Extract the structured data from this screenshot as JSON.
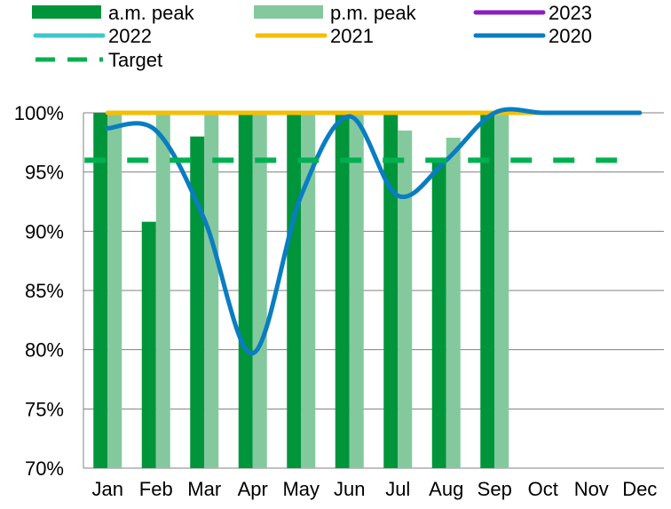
{
  "chart_data": {
    "type": "bar",
    "categories": [
      "Jan",
      "Feb",
      "Mar",
      "Apr",
      "May",
      "Jun",
      "Jul",
      "Aug",
      "Sep",
      "Oct",
      "Nov",
      "Dec"
    ],
    "ylim": [
      70,
      100
    ],
    "yticks": [
      "70%",
      "75%",
      "80%",
      "85%",
      "90%",
      "95%",
      "100%"
    ],
    "ytick_values": [
      70,
      75,
      80,
      85,
      90,
      95,
      100
    ],
    "grid": true,
    "legend_position": "top",
    "bar_series": [
      {
        "name": "a.m. peak",
        "color": "#00953a",
        "values": [
          100,
          90.8,
          98.0,
          100,
          100,
          100,
          100,
          95.8,
          100,
          null,
          null,
          null
        ]
      },
      {
        "name": "p.m. peak",
        "color": "#84c99e",
        "values": [
          100,
          100,
          100,
          100,
          100,
          100,
          98.5,
          97.9,
          100,
          null,
          null,
          null
        ]
      }
    ],
    "line_series": [
      {
        "name": "2023",
        "color": "#8a1fc0",
        "dash": false,
        "values": []
      },
      {
        "name": "2022",
        "color": "#3ec7c9",
        "dash": false,
        "values": []
      },
      {
        "name": "2021",
        "color": "#f7be00",
        "dash": false,
        "values": [
          100,
          100,
          100,
          100,
          100,
          100,
          100,
          100,
          100,
          100,
          100,
          100
        ]
      },
      {
        "name": "2020",
        "color": "#0a7dc2",
        "dash": false,
        "values": [
          98.7,
          98.5,
          91,
          79.7,
          93,
          99.7,
          93,
          96,
          100,
          100,
          100,
          100
        ]
      },
      {
        "name": "Target",
        "color": "#00b050",
        "dash": true,
        "values": [
          96,
          96,
          96,
          96,
          96,
          96,
          96,
          96,
          96,
          96,
          96,
          96
        ]
      }
    ]
  }
}
